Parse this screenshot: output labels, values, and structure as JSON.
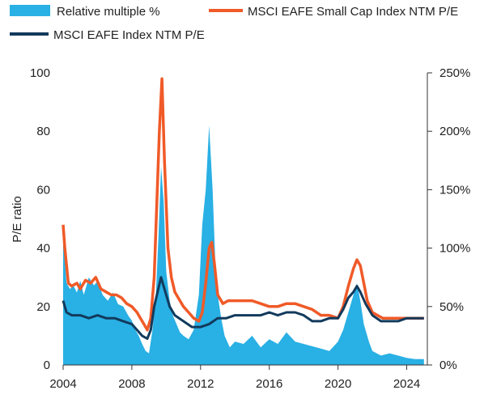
{
  "chart_data": {
    "type": "area",
    "title": "",
    "xlabel": "",
    "ylabel": "P/E ratio",
    "y2label": "",
    "xlim": [
      2004,
      2025.2
    ],
    "ylim": [
      0,
      100
    ],
    "y2lim": [
      0,
      250
    ],
    "grid": false,
    "legend_position": "top",
    "x_ticks": [
      "2004",
      "2008",
      "2012",
      "2016",
      "2020",
      "2024"
    ],
    "y_ticks": [
      "0",
      "20",
      "40",
      "60",
      "80",
      "100"
    ],
    "y2_ticks": [
      "0%",
      "50%",
      "100%",
      "150%",
      "200%",
      "250%"
    ],
    "colors": {
      "relative": "#29b0e4",
      "small_cap": "#f05a28",
      "index": "#123a5c"
    },
    "series": [
      {
        "name": "Relative multiple %",
        "type": "area",
        "axis": "right",
        "x": [
          2004.0,
          2004.2,
          2004.4,
          2004.6,
          2004.8,
          2005.0,
          2005.2,
          2005.5,
          2005.8,
          2006.0,
          2006.3,
          2006.6,
          2006.9,
          2007.2,
          2007.5,
          2007.8,
          2008.0,
          2008.2,
          2008.4,
          2008.6,
          2008.8,
          2009.0,
          2009.2,
          2009.4,
          2009.55,
          2009.7,
          2009.85,
          2010.0,
          2010.2,
          2010.4,
          2010.6,
          2010.8,
          2011.0,
          2011.3,
          2011.6,
          2011.9,
          2012.1,
          2012.3,
          2012.5,
          2012.7,
          2012.85,
          2013.0,
          2013.2,
          2013.4,
          2013.7,
          2014.0,
          2014.5,
          2015.0,
          2015.5,
          2016.0,
          2016.5,
          2017.0,
          2017.5,
          2018.0,
          2018.5,
          2019.0,
          2019.5,
          2020.0,
          2020.3,
          2020.6,
          2020.9,
          2021.1,
          2021.3,
          2021.5,
          2021.8,
          2022.0,
          2022.5,
          2023.0,
          2023.5,
          2024.0,
          2024.5,
          2025.0
        ],
        "values": [
          110,
          70,
          65,
          68,
          62,
          72,
          60,
          75,
          68,
          72,
          60,
          55,
          62,
          52,
          50,
          42,
          38,
          30,
          25,
          18,
          12,
          10,
          30,
          60,
          110,
          170,
          140,
          80,
          55,
          42,
          35,
          28,
          25,
          22,
          30,
          60,
          120,
          150,
          205,
          150,
          90,
          60,
          40,
          25,
          15,
          20,
          18,
          25,
          15,
          22,
          18,
          28,
          20,
          18,
          16,
          14,
          12,
          20,
          30,
          45,
          60,
          70,
          55,
          35,
          20,
          12,
          8,
          10,
          8,
          6,
          5,
          5
        ]
      },
      {
        "name": "MSCI EAFE Small Cap Index NTM P/E",
        "type": "line",
        "axis": "left",
        "x": [
          2004.0,
          2004.1,
          2004.3,
          2004.5,
          2004.8,
          2005.0,
          2005.3,
          2005.6,
          2005.9,
          2006.2,
          2006.5,
          2006.8,
          2007.1,
          2007.4,
          2007.7,
          2008.0,
          2008.3,
          2008.5,
          2008.7,
          2008.9,
          2009.1,
          2009.3,
          2009.45,
          2009.6,
          2009.75,
          2009.9,
          2010.1,
          2010.3,
          2010.5,
          2010.7,
          2011.0,
          2011.3,
          2011.6,
          2011.9,
          2012.1,
          2012.3,
          2012.5,
          2012.65,
          2012.8,
          2013.0,
          2013.3,
          2013.6,
          2014.0,
          2014.5,
          2015.0,
          2015.5,
          2016.0,
          2016.5,
          2017.0,
          2017.5,
          2018.0,
          2018.5,
          2019.0,
          2019.5,
          2020.0,
          2020.3,
          2020.6,
          2020.9,
          2021.1,
          2021.3,
          2021.5,
          2021.7,
          2022.0,
          2022.3,
          2022.6,
          2023.0,
          2023.5,
          2024.0,
          2024.5,
          2025.0
        ],
        "values": [
          48,
          40,
          28,
          27,
          28,
          26,
          29,
          28,
          30,
          26,
          25,
          24,
          24,
          23,
          21,
          20,
          18,
          16,
          14,
          12,
          16,
          30,
          55,
          80,
          98,
          70,
          40,
          30,
          25,
          23,
          20,
          18,
          16,
          15,
          18,
          28,
          40,
          42,
          35,
          24,
          21,
          22,
          22,
          22,
          22,
          21,
          20,
          20,
          21,
          21,
          20,
          19,
          17,
          17,
          16,
          20,
          27,
          33,
          36,
          34,
          28,
          22,
          18,
          17,
          16,
          16,
          16,
          16,
          16,
          16
        ]
      },
      {
        "name": "MSCI EAFE Index NTM P/E",
        "type": "line",
        "axis": "left",
        "x": [
          2004.0,
          2004.2,
          2004.5,
          2005.0,
          2005.5,
          2006.0,
          2006.5,
          2007.0,
          2007.5,
          2008.0,
          2008.3,
          2008.6,
          2008.9,
          2009.1,
          2009.3,
          2009.5,
          2009.7,
          2009.9,
          2010.2,
          2010.5,
          2011.0,
          2011.5,
          2012.0,
          2012.5,
          2013.0,
          2013.5,
          2014.0,
          2014.5,
          2015.0,
          2015.5,
          2016.0,
          2016.5,
          2017.0,
          2017.5,
          2018.0,
          2018.5,
          2019.0,
          2019.5,
          2020.0,
          2020.3,
          2020.6,
          2020.9,
          2021.1,
          2021.3,
          2021.6,
          2022.0,
          2022.5,
          2023.0,
          2023.5,
          2024.0,
          2024.5,
          2025.0
        ],
        "values": [
          22,
          18,
          17,
          17,
          16,
          17,
          16,
          16,
          15,
          14,
          12,
          10,
          9,
          12,
          20,
          25,
          30,
          26,
          20,
          17,
          15,
          13,
          13,
          14,
          16,
          16,
          17,
          17,
          17,
          17,
          18,
          17,
          18,
          18,
          17,
          15,
          15,
          16,
          16,
          19,
          23,
          25,
          27,
          25,
          21,
          17,
          15,
          15,
          15,
          16,
          16,
          16
        ]
      }
    ]
  }
}
